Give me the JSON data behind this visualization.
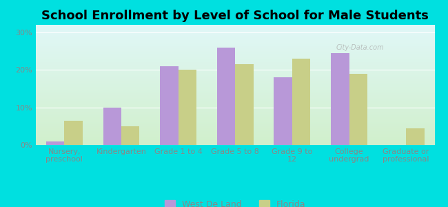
{
  "title": "School Enrollment by Level of School for Male Students",
  "categories": [
    "Nursery,\npreschool",
    "Kindergarten",
    "Grade 1 to 4",
    "Grade 5 to 8",
    "Grade 9 to\n12",
    "College\nundergrad",
    "Graduate or\nprofessional"
  ],
  "west_de_land": [
    1.0,
    10.0,
    21.0,
    26.0,
    18.0,
    24.5,
    0.0
  ],
  "florida": [
    6.5,
    5.0,
    20.0,
    21.5,
    23.0,
    19.0,
    4.5
  ],
  "bar_color_wdl": "#b898d8",
  "bar_color_fl": "#c8cf88",
  "background_outer": "#00e0e0",
  "background_plot_top": "#e8f5f5",
  "background_plot_bottom": "#d8eecc",
  "ylim": [
    0,
    32
  ],
  "yticks": [
    0,
    10,
    20,
    30
  ],
  "ytick_labels": [
    "0%",
    "10%",
    "20%",
    "30%"
  ],
  "legend_label_wdl": "West De Land",
  "legend_label_fl": "Florida",
  "title_fontsize": 13,
  "tick_fontsize": 8,
  "legend_fontsize": 9,
  "axis_color": "#888888"
}
